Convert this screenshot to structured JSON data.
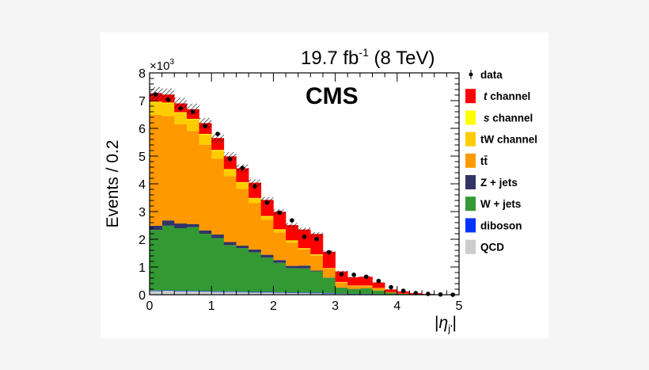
{
  "chart_data": {
    "type": "bar",
    "stacked": true,
    "title": "19.7 fb-1 (8 TeV)",
    "lumi_text": {
      "main": "19.7 fb",
      "sup": "-1",
      "rest": " (8 TeV)"
    },
    "label": "CMS",
    "xlabel": "|η_j'|",
    "xlabel_parts": {
      "bar": "|",
      "eta": "η",
      "sub": "j'"
    },
    "ylabel": "Events / 0.2",
    "y_multiplier": "×10³",
    "y_multiplier_parts": {
      "base": "×10",
      "exp": "3"
    },
    "xlim": [
      0,
      5
    ],
    "ylim": [
      0,
      8
    ],
    "x_ticks": [
      "0",
      "1",
      "2",
      "3",
      "4",
      "5"
    ],
    "y_ticks": [
      "0",
      "1",
      "2",
      "3",
      "4",
      "5",
      "6",
      "7",
      "8"
    ],
    "bin_width": 0.2,
    "bin_edges_start": 0,
    "units_note": "values in thousands of events",
    "legend_position": "right-outside",
    "series": [
      {
        "name": "QCD",
        "color": "#cccccc",
        "values": [
          0.13,
          0.14,
          0.12,
          0.12,
          0.11,
          0.1,
          0.1,
          0.09,
          0.08,
          0.08,
          0.07,
          0.06,
          0.06,
          0.05,
          0.04,
          0.03,
          0.02,
          0.02,
          0.01,
          0.01,
          0,
          0,
          0,
          0,
          0
        ]
      },
      {
        "name": "diboson",
        "color": "#0033ff",
        "values": [
          0.02,
          0.02,
          0.02,
          0.02,
          0.02,
          0.02,
          0.02,
          0.02,
          0.02,
          0.02,
          0.02,
          0.02,
          0.02,
          0.02,
          0.02,
          0.01,
          0.01,
          0.01,
          0.01,
          0,
          0,
          0,
          0,
          0,
          0
        ]
      },
      {
        "name": "W + jets",
        "color": "#339933",
        "values": [
          2.19,
          2.33,
          2.26,
          2.3,
          2.07,
          1.92,
          1.67,
          1.57,
          1.43,
          1.24,
          1.06,
          0.88,
          0.87,
          0.77,
          0.55,
          0.21,
          0.17,
          0.2,
          0.13,
          0.06,
          0.03,
          0.01,
          0,
          0,
          0
        ]
      },
      {
        "name": "Z + jets",
        "color": "#333366",
        "values": [
          0.15,
          0.19,
          0.17,
          0.11,
          0.12,
          0.13,
          0.11,
          0.09,
          0.1,
          0.1,
          0.1,
          0.08,
          0.1,
          0.03,
          0.01,
          0.01,
          0.01,
          0,
          0,
          0,
          0,
          0,
          0,
          0,
          0
        ]
      },
      {
        "name": "tt̄",
        "color": "#ff9900",
        "values": [
          4.0,
          3.76,
          3.58,
          3.36,
          3.09,
          2.74,
          2.37,
          2.05,
          1.67,
          1.26,
          1.0,
          0.83,
          0.58,
          0.54,
          0.31,
          0.18,
          0.1,
          0.08,
          0.1,
          0.02,
          0.01,
          0,
          0,
          0,
          0
        ]
      },
      {
        "name": "tW channel",
        "color": "#ffcc00",
        "values": [
          0.44,
          0.46,
          0.4,
          0.4,
          0.36,
          0.28,
          0.24,
          0.22,
          0.17,
          0.12,
          0.09,
          0.07,
          0.04,
          0.04,
          0.02,
          0.01,
          0.01,
          0.01,
          0,
          0,
          0,
          0,
          0,
          0,
          0
        ]
      },
      {
        "name": "s channel",
        "color": "#ffff00",
        "values": [
          0.03,
          0.03,
          0.03,
          0.03,
          0.03,
          0.03,
          0.02,
          0.02,
          0.02,
          0.02,
          0.02,
          0.02,
          0.01,
          0.01,
          0.01,
          0.01,
          0.01,
          0.01,
          0,
          0,
          0,
          0,
          0,
          0,
          0
        ]
      },
      {
        "name": "t channel",
        "color": "#ff0000",
        "italic_prefix": "t",
        "values": [
          0.31,
          0.29,
          0.32,
          0.35,
          0.39,
          0.43,
          0.46,
          0.5,
          0.55,
          0.58,
          0.63,
          0.55,
          0.67,
          0.73,
          0.59,
          0.38,
          0.3,
          0.32,
          0.19,
          0.1,
          0.08,
          0.05,
          0.03,
          0.01,
          0
        ]
      }
    ],
    "data": {
      "name": "data",
      "values": [
        7.22,
        7.03,
        6.72,
        6.6,
        6.08,
        5.8,
        4.89,
        4.57,
        3.91,
        3.32,
        2.96,
        2.68,
        2.09,
        2.01,
        1.53,
        0.74,
        0.72,
        0.65,
        0.5,
        0.27,
        0.14,
        0.06,
        0.03,
        0.01,
        0
      ]
    },
    "uncertainty_fraction": 0.03,
    "legend": [
      {
        "label": "data",
        "type": "marker"
      },
      {
        "label": "t channel",
        "italic": "t",
        "rest": " channel",
        "color": "#ff0000"
      },
      {
        "label": "s channel",
        "italic": "s",
        "rest": " channel",
        "color": "#ffff00"
      },
      {
        "label": "tW channel",
        "color": "#ffcc00"
      },
      {
        "label": "tt̄",
        "color": "#ff9900"
      },
      {
        "label": "Z + jets",
        "color": "#333366"
      },
      {
        "label": "W + jets",
        "color": "#339933"
      },
      {
        "label": "diboson",
        "color": "#0033ff"
      },
      {
        "label": "QCD",
        "color": "#cccccc"
      }
    ]
  }
}
